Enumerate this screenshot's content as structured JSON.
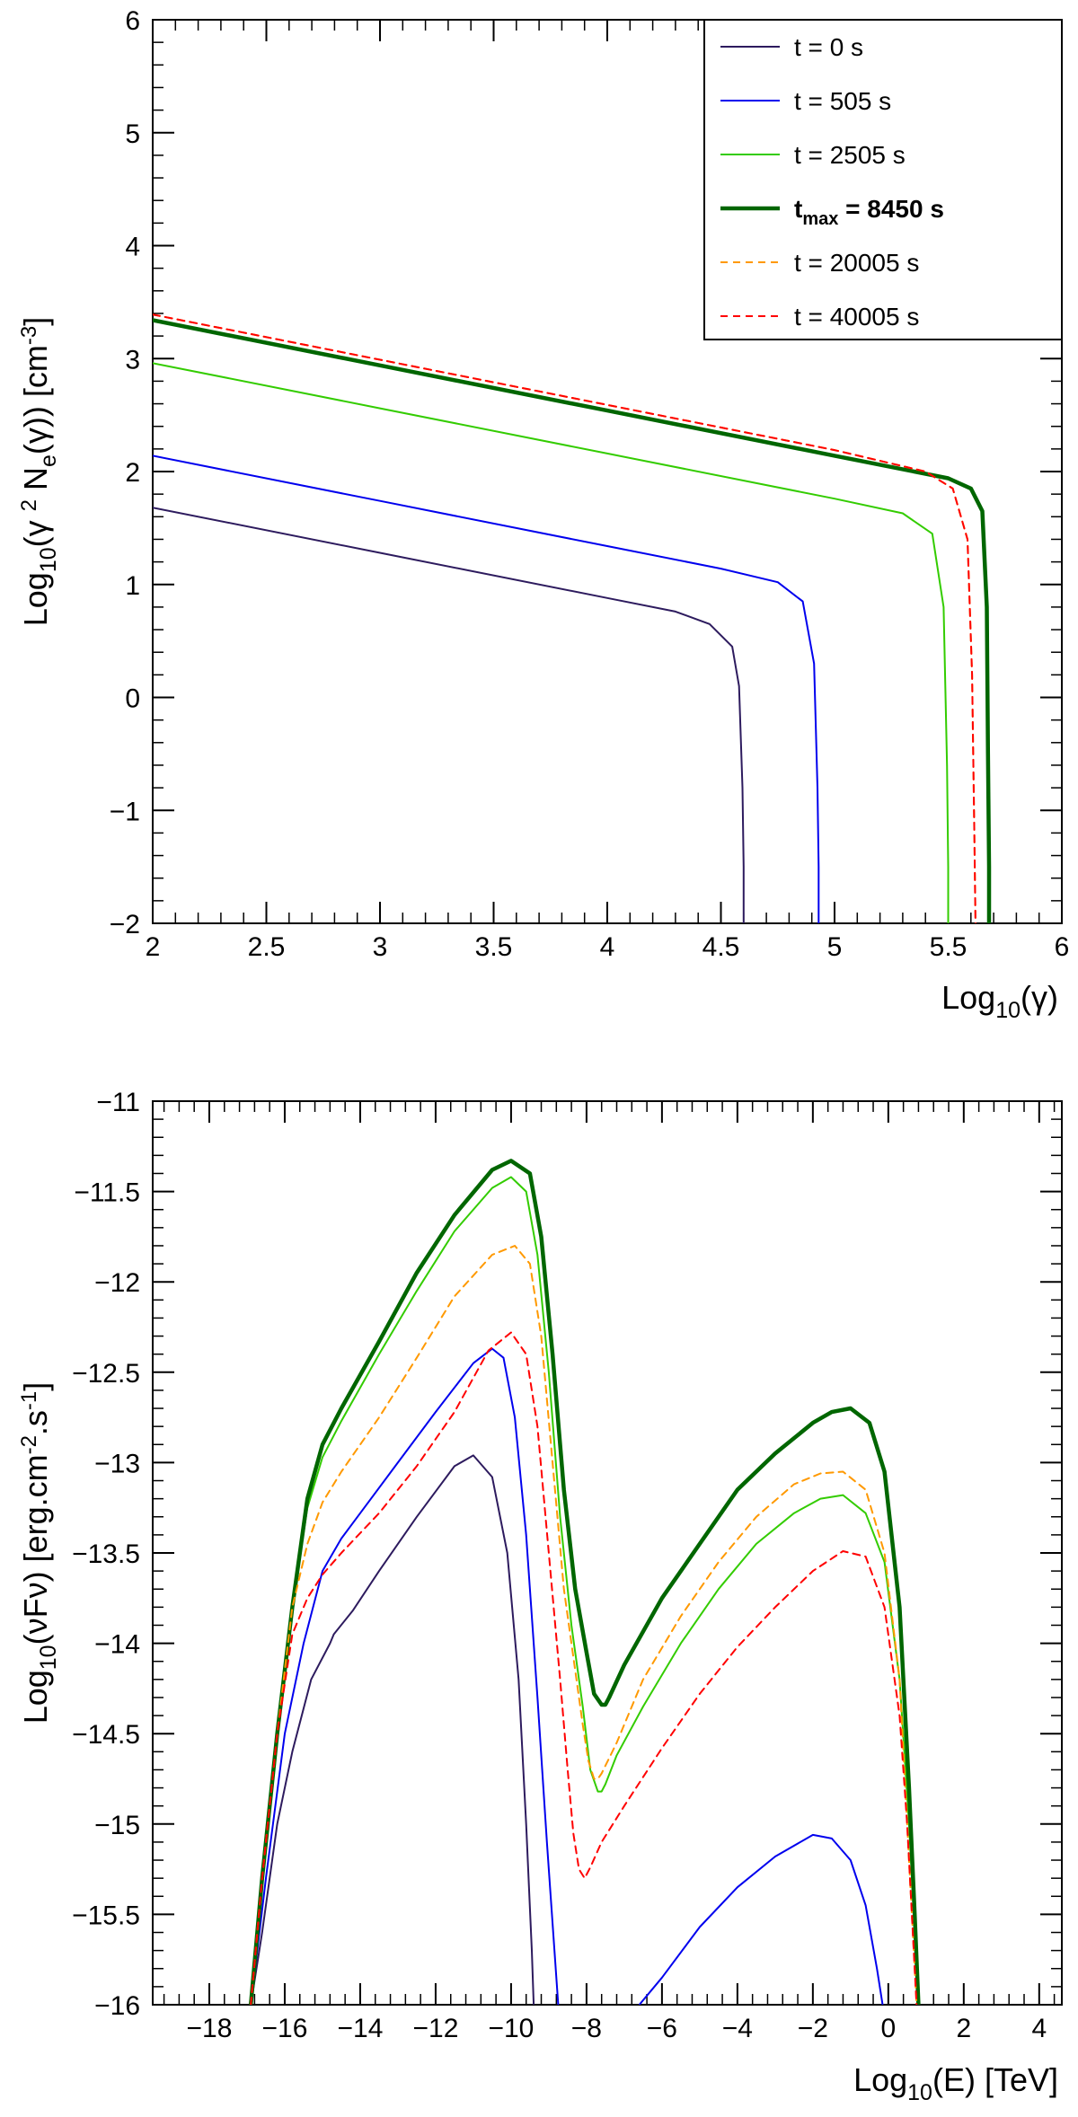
{
  "chart_data": [
    {
      "type": "line",
      "title": "",
      "xlabel": "Log10(γ)",
      "ylabel": "Log10(γ 2 Ne(γ)) [cm-3]",
      "xlim": [
        2,
        6
      ],
      "ylim": [
        -2,
        6
      ],
      "xticks": [
        2,
        2.5,
        3,
        3.5,
        4,
        4.5,
        5,
        5.5,
        6
      ],
      "yticks": [
        -2,
        -1,
        0,
        1,
        2,
        3,
        4,
        5,
        6
      ],
      "xtick_labels": [
        "2",
        "2.5",
        "3",
        "3.5",
        "4",
        "4.5",
        "5",
        "5.5",
        "6"
      ],
      "ytick_labels": [
        "−2",
        "−1",
        "0",
        "1",
        "2",
        "3",
        "4",
        "5",
        "6"
      ],
      "legend": "top-right",
      "grid": false,
      "series": [
        {
          "name": "t = 0 s",
          "color": "#2d1b5e",
          "dash": "solid",
          "bold": false,
          "x": [
            2.0,
            3.0,
            4.0,
            4.3,
            4.45,
            4.55,
            4.58,
            4.595,
            4.6,
            4.6
          ],
          "y": [
            1.68,
            1.28,
            0.88,
            0.76,
            0.65,
            0.45,
            0.1,
            -0.8,
            -1.5,
            -2.0
          ]
        },
        {
          "name": "t = 505 s",
          "color": "#0000ee",
          "dash": "solid",
          "bold": false,
          "x": [
            2.0,
            3.0,
            4.0,
            4.5,
            4.75,
            4.86,
            4.91,
            4.925,
            4.93,
            4.93
          ],
          "y": [
            2.14,
            1.74,
            1.34,
            1.14,
            1.02,
            0.85,
            0.3,
            -0.8,
            -1.5,
            -2.0
          ]
        },
        {
          "name": "t = 2505 s",
          "color": "#33cc00",
          "dash": "solid",
          "bold": false,
          "x": [
            2.0,
            3.0,
            4.0,
            5.0,
            5.3,
            5.43,
            5.48,
            5.495,
            5.5,
            5.5
          ],
          "y": [
            2.96,
            2.56,
            2.16,
            1.76,
            1.63,
            1.45,
            0.8,
            -0.6,
            -1.5,
            -2.0
          ]
        },
        {
          "name": "tmax = 8450 s",
          "color": "#006600",
          "dash": "solid",
          "bold": true,
          "x": [
            2.0,
            3.0,
            4.0,
            5.0,
            5.5,
            5.6,
            5.65,
            5.67,
            5.675,
            5.68,
            5.68
          ],
          "y": [
            3.34,
            2.94,
            2.54,
            2.14,
            1.94,
            1.85,
            1.65,
            0.8,
            -0.5,
            -1.5,
            -2.0
          ]
        },
        {
          "name": "t = 20005 s",
          "color": "#ff9900",
          "dash": "dashed",
          "bold": false,
          "x": [
            2.0,
            3.0,
            4.0,
            5.0,
            5.4,
            5.52,
            5.585,
            5.605,
            5.615,
            5.62
          ],
          "y": [
            3.39,
            2.99,
            2.59,
            2.19,
            2.0,
            1.85,
            1.4,
            0.2,
            -1.2,
            -2.0
          ]
        },
        {
          "name": "t = 40005 s",
          "color": "#ff0000",
          "dash": "dashed",
          "bold": false,
          "x": [
            2.0,
            3.0,
            4.0,
            5.0,
            5.4,
            5.52,
            5.585,
            5.605,
            5.615,
            5.62
          ],
          "y": [
            3.39,
            2.99,
            2.59,
            2.19,
            2.0,
            1.85,
            1.4,
            0.2,
            -1.2,
            -2.0
          ]
        }
      ]
    },
    {
      "type": "line",
      "title": "",
      "xlabel": "Log10(E) [TeV]",
      "ylabel": "Log10(νFν) [erg.cm-2.s-1]",
      "xlim": [
        -19.5,
        4.6
      ],
      "ylim": [
        -16,
        -11
      ],
      "xticks": [
        -18,
        -16,
        -14,
        -12,
        -10,
        -8,
        -6,
        -4,
        -2,
        0,
        2,
        4
      ],
      "yticks": [
        -16,
        -15.5,
        -15,
        -14.5,
        -14,
        -13.5,
        -13,
        -12.5,
        -12,
        -11.5,
        -11
      ],
      "xtick_labels": [
        "−18",
        "−16",
        "−14",
        "−12",
        "−10",
        "−8",
        "−6",
        "−4",
        "−2",
        "0",
        "2",
        "4"
      ],
      "ytick_labels": [
        "−16",
        "−15.5",
        "−15",
        "−14.5",
        "−14",
        "−13.5",
        "−13",
        "−12.5",
        "−12",
        "−11.5",
        "−11"
      ],
      "grid": false,
      "series": [
        {
          "name": "t = 0 s",
          "color": "#2d1b5e",
          "dash": "solid",
          "bold": false,
          "segments": [
            {
              "x": [
                -16.9,
                -16.6,
                -16.2,
                -15.8,
                -15.3,
                -14.8,
                -14.7,
                -14.2,
                -13.5,
                -12.5,
                -11.5,
                -11.0,
                -10.5,
                -10.1,
                -9.8,
                -9.6,
                -9.45,
                -9.4
              ],
              "y": [
                -16.0,
                -15.6,
                -15.0,
                -14.6,
                -14.2,
                -14.0,
                -13.95,
                -13.82,
                -13.6,
                -13.3,
                -13.02,
                -12.96,
                -13.08,
                -13.5,
                -14.2,
                -15.0,
                -15.7,
                -16.0
              ]
            }
          ]
        },
        {
          "name": "t = 505 s",
          "color": "#0000ee",
          "dash": "solid",
          "bold": false,
          "segments": [
            {
              "x": [
                -16.9,
                -16.5,
                -16.0,
                -15.5,
                -15.0,
                -14.5,
                -14.0,
                -13.0,
                -12.0,
                -11.0,
                -10.5,
                -10.2,
                -9.9,
                -9.6,
                -9.3,
                -9.05,
                -8.85,
                -8.75
              ],
              "y": [
                -16.0,
                -15.3,
                -14.5,
                -14.0,
                -13.6,
                -13.42,
                -13.28,
                -13.0,
                -12.72,
                -12.45,
                -12.37,
                -12.42,
                -12.75,
                -13.4,
                -14.3,
                -15.1,
                -15.7,
                -16.0
              ]
            },
            {
              "x": [
                -6.6,
                -6.0,
                -5.0,
                -4.0,
                -3.0,
                -2.0,
                -1.5,
                -1.0,
                -0.6,
                -0.3,
                -0.15
              ],
              "y": [
                -16.0,
                -15.85,
                -15.57,
                -15.35,
                -15.18,
                -15.06,
                -15.08,
                -15.2,
                -15.45,
                -15.8,
                -16.0
              ]
            }
          ]
        },
        {
          "name": "t = 2505 s",
          "color": "#33cc00",
          "dash": "solid",
          "bold": false,
          "segments": [
            {
              "x": [
                -16.9,
                -16.6,
                -16.2,
                -15.8,
                -15.4,
                -15.0,
                -14.5,
                -13.5,
                -12.5,
                -11.5,
                -10.5,
                -10.0,
                -9.6,
                -9.3,
                -9.0,
                -8.7,
                -8.4,
                -8.1,
                -7.9,
                -7.7,
                -7.6,
                -7.5,
                -7.2,
                -6.5,
                -5.5,
                -4.5,
                -3.5,
                -2.5,
                -1.8,
                -1.2,
                -0.6,
                -0.1,
                0.3,
                0.55,
                0.7,
                0.8
              ],
              "y": [
                -16.0,
                -15.3,
                -14.5,
                -13.8,
                -13.25,
                -12.97,
                -12.77,
                -12.4,
                -12.05,
                -11.72,
                -11.48,
                -11.42,
                -11.5,
                -11.85,
                -12.5,
                -13.3,
                -13.9,
                -14.35,
                -14.7,
                -14.82,
                -14.82,
                -14.78,
                -14.62,
                -14.35,
                -14.0,
                -13.7,
                -13.45,
                -13.28,
                -13.2,
                -13.18,
                -13.28,
                -13.55,
                -14.2,
                -15.0,
                -15.6,
                -16.0
              ]
            }
          ]
        },
        {
          "name": "tmax = 8450 s",
          "color": "#006600",
          "dash": "solid",
          "bold": true,
          "segments": [
            {
              "x": [
                -16.9,
                -16.6,
                -16.2,
                -15.8,
                -15.4,
                -15.0,
                -14.5,
                -13.5,
                -12.5,
                -11.5,
                -10.5,
                -10.0,
                -9.5,
                -9.2,
                -8.9,
                -8.6,
                -8.3,
                -8.0,
                -7.8,
                -7.6,
                -7.5,
                -7.4,
                -7.0,
                -6.0,
                -5.0,
                -4.0,
                -3.0,
                -2.0,
                -1.5,
                -1.0,
                -0.5,
                -0.1,
                0.3,
                0.55,
                0.7,
                0.8
              ],
              "y": [
                -16.0,
                -15.3,
                -14.5,
                -13.8,
                -13.2,
                -12.9,
                -12.7,
                -12.33,
                -11.95,
                -11.63,
                -11.38,
                -11.33,
                -11.4,
                -11.75,
                -12.4,
                -13.15,
                -13.7,
                -14.05,
                -14.28,
                -14.34,
                -14.34,
                -14.3,
                -14.12,
                -13.75,
                -13.45,
                -13.15,
                -12.95,
                -12.78,
                -12.72,
                -12.7,
                -12.78,
                -13.05,
                -13.8,
                -14.8,
                -15.5,
                -16.0
              ]
            }
          ]
        },
        {
          "name": "t = 20005 s",
          "color": "#ff9900",
          "dash": "dashed",
          "bold": false,
          "segments": [
            {
              "x": [
                -16.9,
                -16.6,
                -16.2,
                -15.8,
                -15.4,
                -15.0,
                -14.5,
                -13.5,
                -12.5,
                -11.5,
                -10.5,
                -9.9,
                -9.5,
                -9.2,
                -8.9,
                -8.6,
                -8.3,
                -8.1,
                -7.95,
                -7.8,
                -7.7,
                -7.6,
                -7.2,
                -6.5,
                -5.5,
                -4.5,
                -3.5,
                -2.5,
                -1.8,
                -1.2,
                -0.6,
                -0.1,
                0.3,
                0.5,
                0.65,
                0.75
              ],
              "y": [
                -16.0,
                -15.3,
                -14.5,
                -13.8,
                -13.45,
                -13.22,
                -13.05,
                -12.75,
                -12.42,
                -12.08,
                -11.85,
                -11.8,
                -11.9,
                -12.3,
                -13.0,
                -13.7,
                -14.15,
                -14.45,
                -14.65,
                -14.75,
                -14.75,
                -14.72,
                -14.55,
                -14.2,
                -13.85,
                -13.55,
                -13.3,
                -13.12,
                -13.06,
                -13.05,
                -13.15,
                -13.5,
                -14.2,
                -15.0,
                -15.6,
                -16.0
              ]
            }
          ]
        },
        {
          "name": "t = 40005 s",
          "color": "#ff0000",
          "dash": "dashed",
          "bold": false,
          "segments": [
            {
              "x": [
                -16.9,
                -16.6,
                -16.2,
                -15.8,
                -15.4,
                -15.0,
                -14.5,
                -13.5,
                -12.5,
                -11.5,
                -10.6,
                -10.0,
                -9.6,
                -9.3,
                -9.0,
                -8.7,
                -8.5,
                -8.35,
                -8.2,
                -8.05,
                -7.9,
                -7.6,
                -7.0,
                -6.0,
                -5.0,
                -4.0,
                -3.0,
                -2.0,
                -1.2,
                -0.6,
                -0.1,
                0.3,
                0.5,
                0.65,
                0.75
              ],
              "y": [
                -16.0,
                -15.3,
                -14.5,
                -13.95,
                -13.75,
                -13.62,
                -13.5,
                -13.28,
                -13.02,
                -12.72,
                -12.38,
                -12.28,
                -12.4,
                -12.8,
                -13.5,
                -14.2,
                -14.7,
                -15.05,
                -15.25,
                -15.3,
                -15.24,
                -15.1,
                -14.9,
                -14.58,
                -14.28,
                -14.02,
                -13.8,
                -13.6,
                -13.49,
                -13.52,
                -13.8,
                -14.4,
                -15.0,
                -15.6,
                -16.0
              ]
            }
          ]
        }
      ]
    }
  ]
}
